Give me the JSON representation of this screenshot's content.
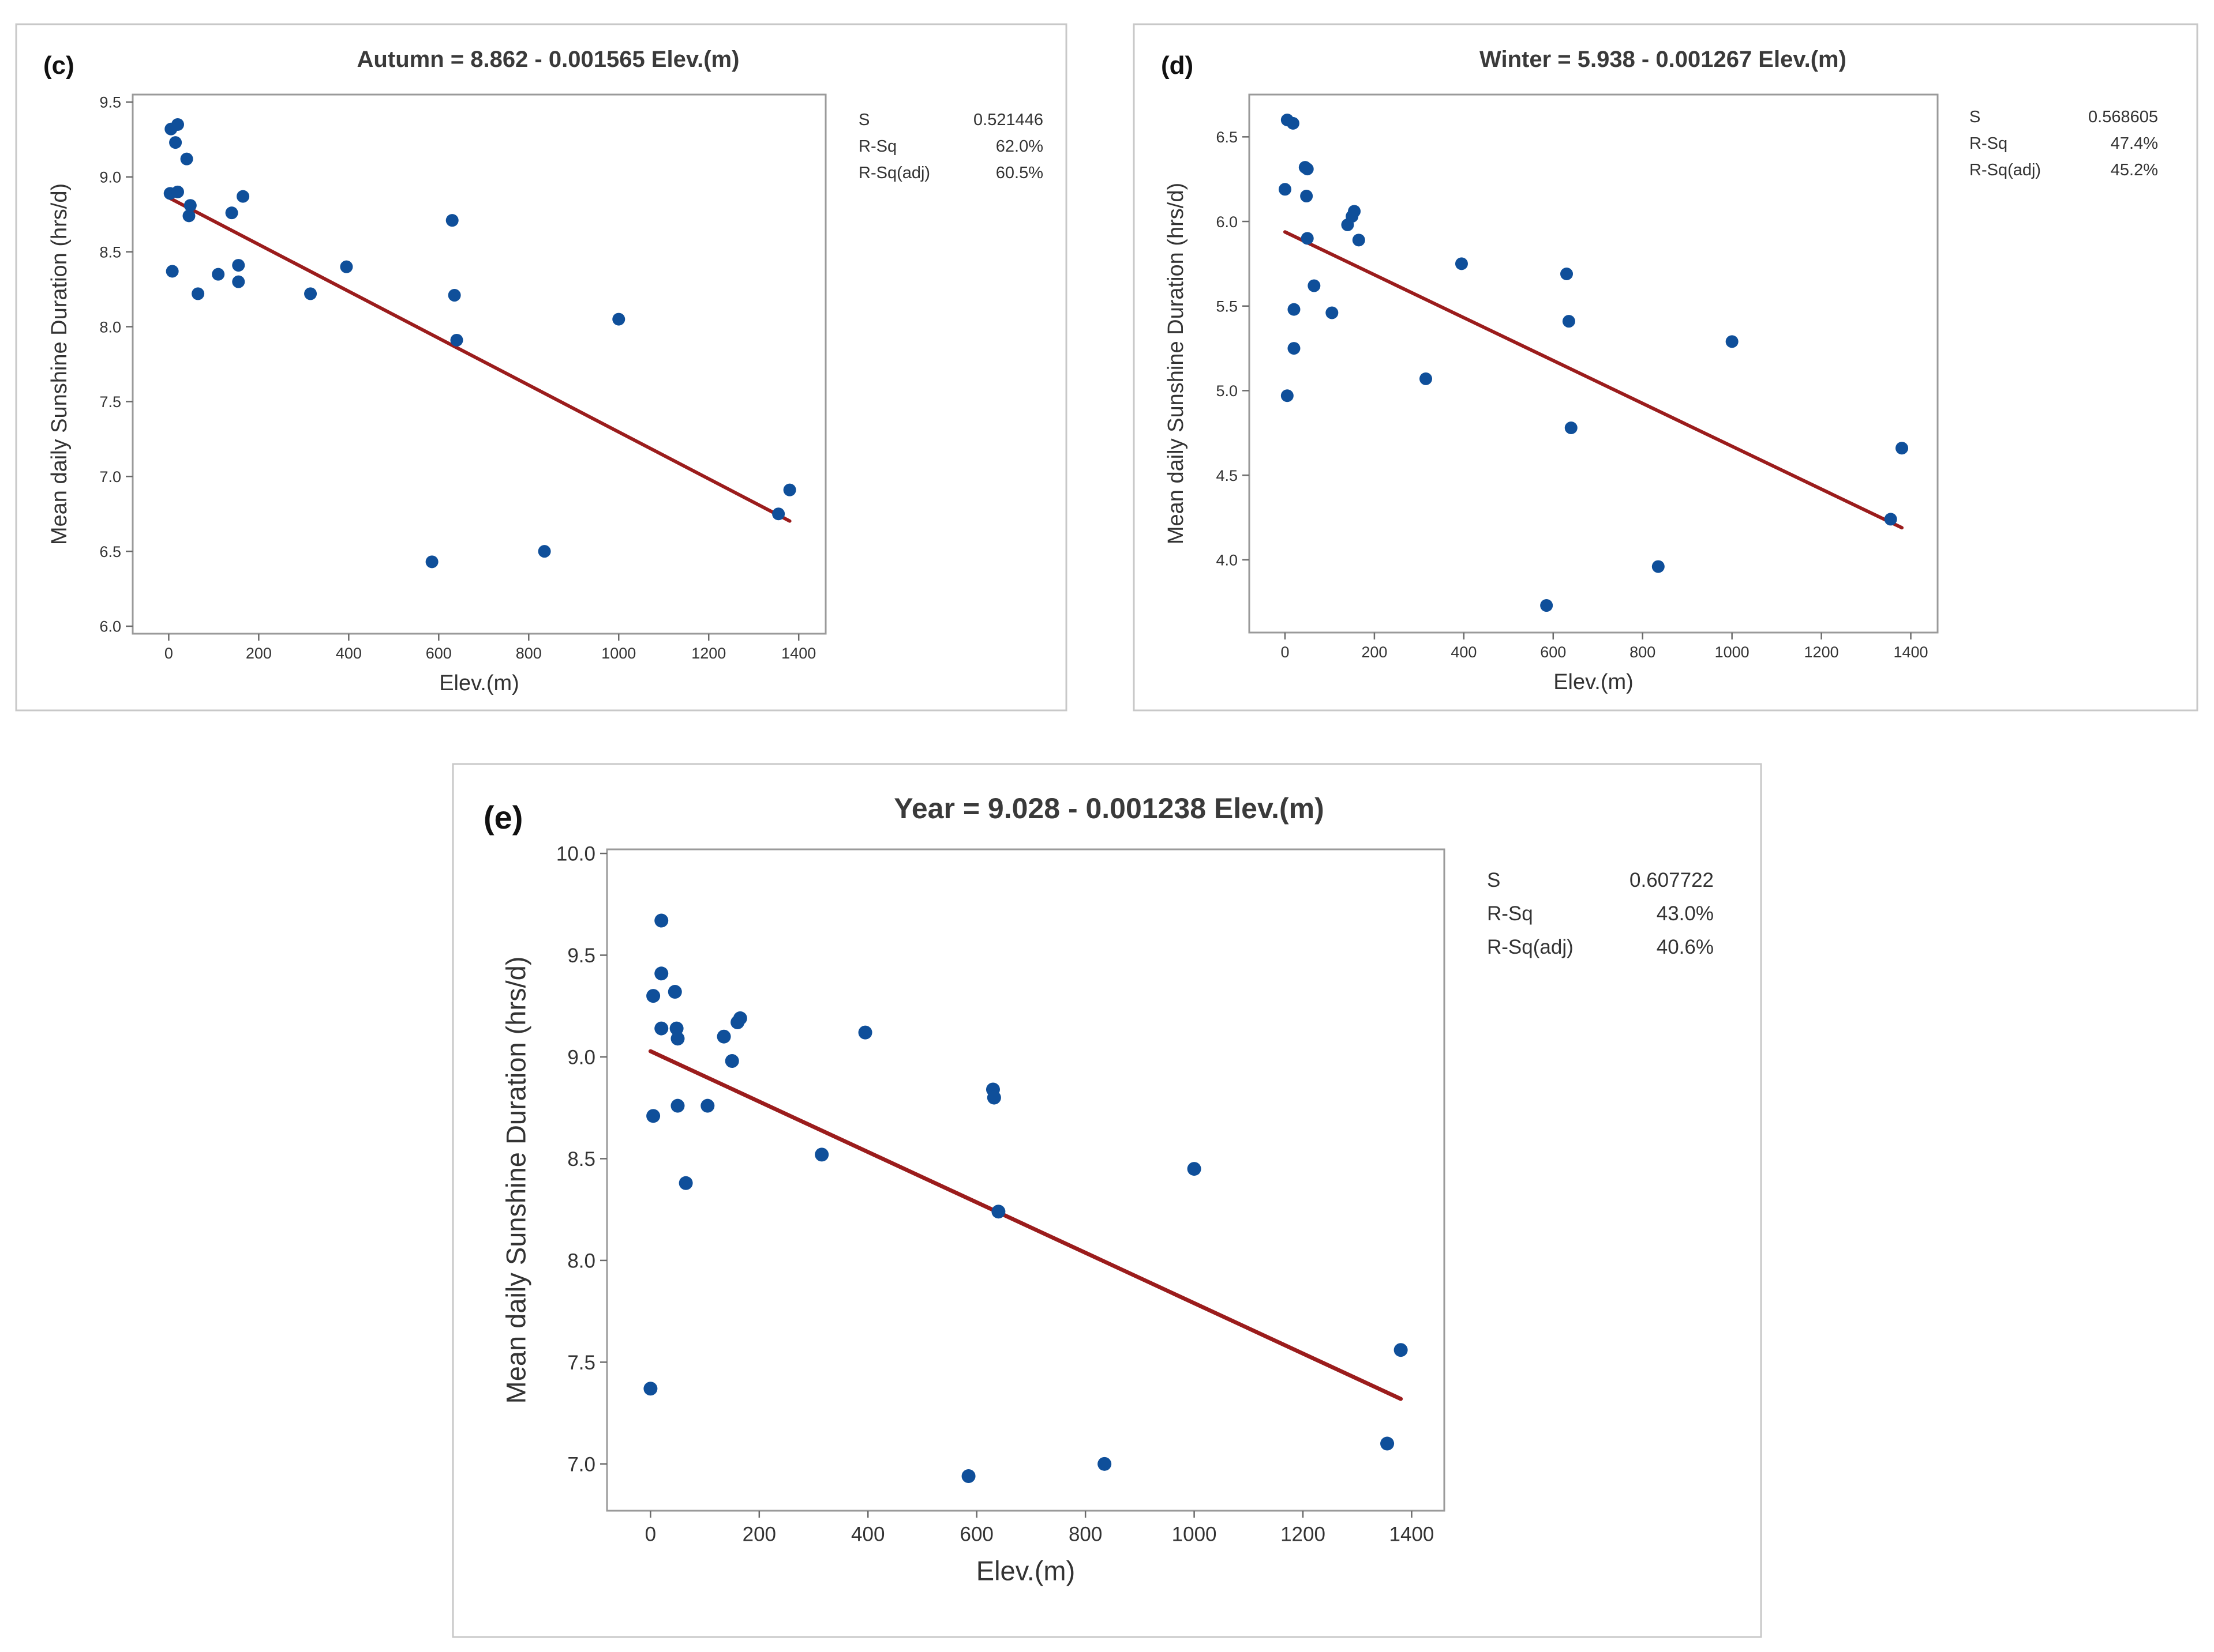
{
  "colors": {
    "point": "#0f4f9a",
    "fit_line": "#9b1c1c"
  },
  "chart_data": [
    {
      "type": "scatter",
      "panel_label": "(c)",
      "title": "Autumn = 8.862 - 0.001565 Elev.(m)",
      "xlabel": "Elev.(m)",
      "ylabel": "Mean daily Sunshine Duration (hrs/d)",
      "xlim": [
        -80,
        1460
      ],
      "ylim": [
        5.95,
        9.55
      ],
      "xticks": [
        0,
        200,
        400,
        600,
        800,
        1000,
        1200,
        1400
      ],
      "yticks": [
        6.0,
        6.5,
        7.0,
        7.5,
        8.0,
        8.5,
        9.0,
        9.5
      ],
      "ytick_decimals": 1,
      "intercept": 8.862,
      "slope": -0.001565,
      "fit_range": [
        0,
        1380
      ],
      "stats": [
        {
          "label": "S",
          "value": "0.521446"
        },
        {
          "label": "R-Sq",
          "value": "62.0%"
        },
        {
          "label": "R-Sq(adj)",
          "value": "60.5%"
        }
      ],
      "points": [
        [
          5,
          9.32
        ],
        [
          15,
          9.23
        ],
        [
          20,
          9.35
        ],
        [
          40,
          9.12
        ],
        [
          3,
          8.89
        ],
        [
          20,
          8.9
        ],
        [
          48,
          8.81
        ],
        [
          45,
          8.74
        ],
        [
          140,
          8.76
        ],
        [
          165,
          8.87
        ],
        [
          8,
          8.37
        ],
        [
          65,
          8.22
        ],
        [
          110,
          8.35
        ],
        [
          155,
          8.41
        ],
        [
          155,
          8.3
        ],
        [
          315,
          8.22
        ],
        [
          395,
          8.4
        ],
        [
          630,
          8.71
        ],
        [
          635,
          8.21
        ],
        [
          640,
          7.91
        ],
        [
          1000,
          8.05
        ],
        [
          1380,
          6.91
        ],
        [
          1355,
          6.75
        ],
        [
          585,
          6.43
        ],
        [
          835,
          6.5
        ]
      ]
    },
    {
      "type": "scatter",
      "panel_label": "(d)",
      "title": "Winter = 5.938 - 0.001267 Elev.(m)",
      "xlabel": "Elev.(m)",
      "ylabel": "Mean daily Sunshine Duration (hrs/d)",
      "xlim": [
        -80,
        1460
      ],
      "ylim": [
        3.57,
        6.75
      ],
      "xticks": [
        0,
        200,
        400,
        600,
        800,
        1000,
        1200,
        1400
      ],
      "yticks": [
        4.0,
        4.5,
        5.0,
        5.5,
        6.0,
        6.5
      ],
      "ytick_decimals": 1,
      "intercept": 5.938,
      "slope": -0.001267,
      "fit_range": [
        0,
        1380
      ],
      "stats": [
        {
          "label": "S",
          "value": "0.568605"
        },
        {
          "label": "R-Sq",
          "value": "47.4%"
        },
        {
          "label": "R-Sq(adj)",
          "value": "45.2%"
        }
      ],
      "points": [
        [
          5,
          6.6
        ],
        [
          18,
          6.58
        ],
        [
          45,
          6.32
        ],
        [
          50,
          6.31
        ],
        [
          0,
          6.19
        ],
        [
          48,
          6.15
        ],
        [
          155,
          6.06
        ],
        [
          150,
          6.03
        ],
        [
          140,
          5.98
        ],
        [
          50,
          5.9
        ],
        [
          165,
          5.89
        ],
        [
          65,
          5.62
        ],
        [
          20,
          5.48
        ],
        [
          105,
          5.46
        ],
        [
          20,
          5.25
        ],
        [
          5,
          4.97
        ],
        [
          395,
          5.75
        ],
        [
          630,
          5.69
        ],
        [
          635,
          5.41
        ],
        [
          315,
          5.07
        ],
        [
          640,
          4.78
        ],
        [
          1000,
          5.29
        ],
        [
          1380,
          4.66
        ],
        [
          1355,
          4.24
        ],
        [
          835,
          3.96
        ],
        [
          585,
          3.73
        ]
      ]
    },
    {
      "type": "scatter",
      "panel_label": "(e)",
      "title": "Year = 9.028 - 0.001238 Elev.(m)",
      "xlabel": "Elev.(m)",
      "ylabel": "Mean daily Sunshine Duration (hrs/d)",
      "xlim": [
        -80,
        1460
      ],
      "ylim": [
        6.77,
        10.02
      ],
      "xticks": [
        0,
        200,
        400,
        600,
        800,
        1000,
        1200,
        1400
      ],
      "yticks": [
        7.0,
        7.5,
        8.0,
        8.5,
        9.0,
        9.5,
        10.0
      ],
      "ytick_decimals": 1,
      "intercept": 9.028,
      "slope": -0.001238,
      "fit_range": [
        0,
        1380
      ],
      "stats": [
        {
          "label": "S",
          "value": "0.607722"
        },
        {
          "label": "R-Sq",
          "value": "43.0%"
        },
        {
          "label": "R-Sq(adj)",
          "value": "40.6%"
        }
      ],
      "points": [
        [
          20,
          9.67
        ],
        [
          20,
          9.41
        ],
        [
          5,
          9.3
        ],
        [
          45,
          9.32
        ],
        [
          20,
          9.14
        ],
        [
          48,
          9.14
        ],
        [
          50,
          9.09
        ],
        [
          135,
          9.1
        ],
        [
          160,
          9.17
        ],
        [
          165,
          9.19
        ],
        [
          150,
          8.98
        ],
        [
          5,
          8.71
        ],
        [
          50,
          8.76
        ],
        [
          105,
          8.76
        ],
        [
          65,
          8.38
        ],
        [
          315,
          8.52
        ],
        [
          395,
          9.12
        ],
        [
          630,
          8.84
        ],
        [
          632,
          8.8
        ],
        [
          640,
          8.24
        ],
        [
          1000,
          8.45
        ],
        [
          1380,
          7.56
        ],
        [
          1355,
          7.1
        ],
        [
          585,
          6.94
        ],
        [
          835,
          7.0
        ],
        [
          0,
          7.37
        ]
      ]
    }
  ]
}
